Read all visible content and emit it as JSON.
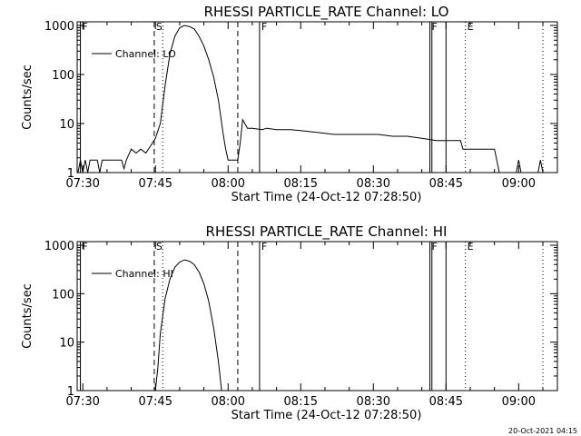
{
  "footer_timestamp": "20-Oct-2021 04:15",
  "chart_data": [
    {
      "type": "line",
      "title": "RHESSI PARTICLE_RATE Channel: LO",
      "xlabel": "Start Time (24-Oct-12 07:28:50)",
      "ylabel": "Counts/sec",
      "yscale": "log",
      "ylim": [
        1,
        1000
      ],
      "xlim": [
        "07:28:50",
        "09:08:00"
      ],
      "xticks": [
        "07:30",
        "07:45",
        "08:00",
        "08:15",
        "08:30",
        "08:45",
        "09:00"
      ],
      "yticks": [
        "1",
        "10",
        "100",
        "1000"
      ],
      "legend": {
        "position": "top-left",
        "entry": "Channel: LO"
      },
      "flags": [
        {
          "label": "F",
          "time": "07:29:30",
          "style": "solid"
        },
        {
          "label": "S",
          "time": "07:44:45",
          "style": "dashed"
        },
        {
          "label": "",
          "time": "07:46:30",
          "style": "dotted"
        },
        {
          "label": "",
          "time": "08:02:00",
          "style": "dashed"
        },
        {
          "label": "F",
          "time": "08:06:30",
          "style": "solid"
        },
        {
          "label": "F",
          "time": "08:41:40",
          "style": "solid"
        },
        {
          "label": "",
          "time": "08:42:05",
          "style": "solid"
        },
        {
          "label": "",
          "time": "08:45:00",
          "style": "solid"
        },
        {
          "label": "E",
          "time": "08:49:00",
          "style": "dotted"
        },
        {
          "label": "",
          "time": "09:05:00",
          "style": "dotted"
        }
      ],
      "series": [
        {
          "name": "Channel: LO",
          "points": [
            [
              "07:29:00",
              1
            ],
            [
              "07:29:30",
              1.8
            ],
            [
              "07:30:00",
              1
            ],
            [
              "07:30:30",
              1.8
            ],
            [
              "07:31:00",
              1
            ],
            [
              "07:31:30",
              1.8
            ],
            [
              "07:32:00",
              1.8
            ],
            [
              "07:33:00",
              1.8
            ],
            [
              "07:33:30",
              1
            ],
            [
              "07:34:00",
              1.8
            ],
            [
              "07:36:00",
              1.8
            ],
            [
              "07:37:00",
              1.8
            ],
            [
              "07:38:00",
              1.8
            ],
            [
              "07:38:30",
              1.2
            ],
            [
              "07:39:00",
              1.8
            ],
            [
              "07:40:00",
              3
            ],
            [
              "07:41:00",
              2.5
            ],
            [
              "07:42:00",
              3
            ],
            [
              "07:43:00",
              2.5
            ],
            [
              "07:44:00",
              3.5
            ],
            [
              "07:45:00",
              5
            ],
            [
              "07:46:00",
              10
            ],
            [
              "07:47:00",
              60
            ],
            [
              "07:48:00",
              260
            ],
            [
              "07:49:00",
              600
            ],
            [
              "07:50:00",
              900
            ],
            [
              "07:51:00",
              1000
            ],
            [
              "07:52:00",
              950
            ],
            [
              "07:53:00",
              850
            ],
            [
              "07:54:00",
              600
            ],
            [
              "07:55:00",
              380
            ],
            [
              "07:56:00",
              200
            ],
            [
              "07:57:00",
              90
            ],
            [
              "07:58:00",
              30
            ],
            [
              "07:59:00",
              6
            ],
            [
              "07:59:30",
              3
            ],
            [
              "08:00:00",
              1.8
            ],
            [
              "08:01:00",
              1.8
            ],
            [
              "08:02:00",
              1.8
            ],
            [
              "08:02:30",
              4
            ],
            [
              "08:03:00",
              12
            ],
            [
              "08:04:00",
              8
            ],
            [
              "08:05:00",
              8
            ],
            [
              "08:07:00",
              7.5
            ],
            [
              "08:08:00",
              8
            ],
            [
              "08:10:00",
              7.5
            ],
            [
              "08:13:00",
              7.5
            ],
            [
              "08:16:00",
              7
            ],
            [
              "08:19:00",
              6.5
            ],
            [
              "08:22:00",
              6
            ],
            [
              "08:25:00",
              6
            ],
            [
              "08:28:00",
              6
            ],
            [
              "08:31:00",
              6
            ],
            [
              "08:34:00",
              5.5
            ],
            [
              "08:37:00",
              5.5
            ],
            [
              "08:40:00",
              5
            ],
            [
              "08:43:00",
              4.5
            ],
            [
              "08:46:00",
              4.5
            ],
            [
              "08:48:00",
              4.5
            ],
            [
              "08:48:30",
              3
            ],
            [
              "08:53:00",
              3
            ],
            [
              "08:55:00",
              3
            ],
            [
              "08:56:00",
              1
            ],
            [
              "08:57:00",
              1
            ],
            [
              "08:59:30",
              1
            ],
            [
              "09:00:00",
              1.8
            ],
            [
              "09:00:30",
              1
            ],
            [
              "09:04:00",
              1
            ],
            [
              "09:04:30",
              1.8
            ],
            [
              "09:05:00",
              1
            ],
            [
              "09:06:00",
              1
            ]
          ]
        }
      ]
    },
    {
      "type": "line",
      "title": "RHESSI PARTICLE_RATE Channel: HI",
      "xlabel": "Start Time (24-Oct-12 07:28:50)",
      "ylabel": "Counts/sec",
      "yscale": "log",
      "ylim": [
        1,
        1000
      ],
      "xlim": [
        "07:28:50",
        "09:08:00"
      ],
      "xticks": [
        "07:30",
        "07:45",
        "08:00",
        "08:15",
        "08:30",
        "08:45",
        "09:00"
      ],
      "yticks": [
        "1",
        "10",
        "100",
        "1000"
      ],
      "legend": {
        "position": "top-left",
        "entry": "Channel: HI"
      },
      "flags": [
        {
          "label": "F",
          "time": "07:29:30",
          "style": "solid"
        },
        {
          "label": "S",
          "time": "07:44:45",
          "style": "dashed"
        },
        {
          "label": "",
          "time": "07:46:30",
          "style": "dotted"
        },
        {
          "label": "",
          "time": "08:02:00",
          "style": "dashed"
        },
        {
          "label": "F",
          "time": "08:06:30",
          "style": "solid"
        },
        {
          "label": "F",
          "time": "08:41:40",
          "style": "solid"
        },
        {
          "label": "",
          "time": "08:42:05",
          "style": "solid"
        },
        {
          "label": "",
          "time": "08:45:00",
          "style": "solid"
        },
        {
          "label": "E",
          "time": "08:49:00",
          "style": "dotted"
        },
        {
          "label": "",
          "time": "09:05:00",
          "style": "dotted"
        }
      ],
      "series": [
        {
          "name": "Channel: HI",
          "points": [
            [
              "07:45:00",
              1
            ],
            [
              "07:45:30",
              3
            ],
            [
              "07:46:00",
              15
            ],
            [
              "07:47:00",
              80
            ],
            [
              "07:48:00",
              200
            ],
            [
              "07:49:00",
              350
            ],
            [
              "07:50:00",
              450
            ],
            [
              "07:51:00",
              500
            ],
            [
              "07:52:00",
              470
            ],
            [
              "07:53:00",
              400
            ],
            [
              "07:54:00",
              280
            ],
            [
              "07:55:00",
              160
            ],
            [
              "07:56:00",
              70
            ],
            [
              "07:57:00",
              20
            ],
            [
              "07:58:00",
              4
            ],
            [
              "07:58:40",
              1
            ]
          ]
        }
      ]
    }
  ]
}
